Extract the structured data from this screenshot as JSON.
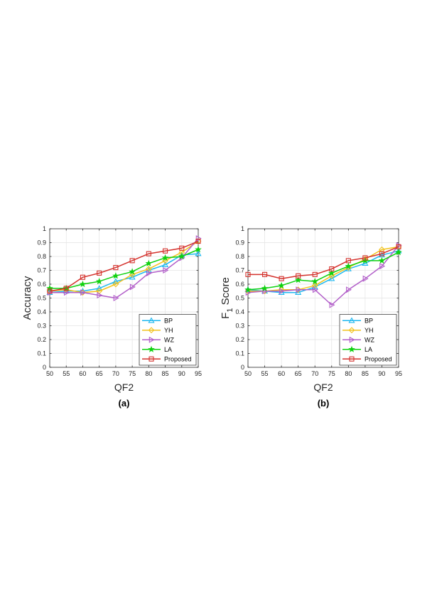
{
  "chart_data": [
    {
      "type": "line",
      "panel_label": "(a)",
      "xlabel": "QF2",
      "ylabel": "Accuracy",
      "ylabel_sub": "",
      "ylabel_rest": "",
      "x": [
        50,
        55,
        60,
        65,
        70,
        75,
        80,
        85,
        90,
        95
      ],
      "xlim": [
        50,
        95
      ],
      "ylim": [
        0,
        1
      ],
      "yticks": [
        0,
        0.1,
        0.2,
        0.3,
        0.4,
        0.5,
        0.6,
        0.7,
        0.8,
        0.9,
        1
      ],
      "grid": true,
      "legend_position": "bottom-right",
      "series": [
        {
          "name": "BP",
          "color": "#1fb8f0",
          "marker": "triangle-up",
          "values": [
            0.54,
            0.55,
            0.55,
            0.57,
            0.62,
            0.65,
            0.7,
            0.74,
            0.81,
            0.82
          ]
        },
        {
          "name": "YH",
          "color": "#f2c21b",
          "marker": "diamond",
          "values": [
            0.55,
            0.56,
            0.54,
            0.55,
            0.6,
            0.67,
            0.71,
            0.77,
            0.83,
            0.91
          ]
        },
        {
          "name": "WZ",
          "color": "#b25fc9",
          "marker": "triangle-right",
          "values": [
            0.54,
            0.54,
            0.54,
            0.52,
            0.5,
            0.58,
            0.68,
            0.7,
            0.79,
            0.93
          ]
        },
        {
          "name": "LA",
          "color": "#0fd10f",
          "marker": "star",
          "values": [
            0.57,
            0.57,
            0.6,
            0.62,
            0.66,
            0.69,
            0.75,
            0.79,
            0.8,
            0.85
          ]
        },
        {
          "name": "Proposed",
          "color": "#d4312c",
          "marker": "square",
          "values": [
            0.55,
            0.57,
            0.65,
            0.68,
            0.72,
            0.77,
            0.82,
            0.84,
            0.86,
            0.91
          ]
        }
      ]
    },
    {
      "type": "line",
      "panel_label": "(b)",
      "xlabel": "QF2",
      "ylabel": "F",
      "ylabel_sub": "1",
      "ylabel_rest": " Score",
      "x": [
        50,
        55,
        60,
        65,
        70,
        75,
        80,
        85,
        90,
        95
      ],
      "xlim": [
        50,
        95
      ],
      "ylim": [
        0,
        1
      ],
      "yticks": [
        0,
        0.1,
        0.2,
        0.3,
        0.4,
        0.5,
        0.6,
        0.7,
        0.8,
        0.9,
        1
      ],
      "grid": true,
      "legend_position": "bottom-right",
      "series": [
        {
          "name": "BP",
          "color": "#1fb8f0",
          "marker": "triangle-up",
          "values": [
            0.56,
            0.55,
            0.54,
            0.54,
            0.58,
            0.64,
            0.71,
            0.75,
            0.81,
            0.84
          ]
        },
        {
          "name": "YH",
          "color": "#f2c21b",
          "marker": "diamond",
          "values": [
            0.55,
            0.55,
            0.56,
            0.56,
            0.59,
            0.66,
            0.72,
            0.78,
            0.85,
            0.87
          ]
        },
        {
          "name": "WZ",
          "color": "#b25fc9",
          "marker": "triangle-right",
          "values": [
            0.54,
            0.55,
            0.55,
            0.56,
            0.56,
            0.45,
            0.56,
            0.64,
            0.73,
            0.88
          ]
        },
        {
          "name": "LA",
          "color": "#0fd10f",
          "marker": "star",
          "values": [
            0.56,
            0.57,
            0.59,
            0.63,
            0.62,
            0.68,
            0.73,
            0.77,
            0.77,
            0.83
          ]
        },
        {
          "name": "Proposed",
          "color": "#d4312c",
          "marker": "square",
          "values": [
            0.67,
            0.67,
            0.64,
            0.66,
            0.67,
            0.71,
            0.77,
            0.79,
            0.82,
            0.87
          ]
        }
      ]
    }
  ]
}
